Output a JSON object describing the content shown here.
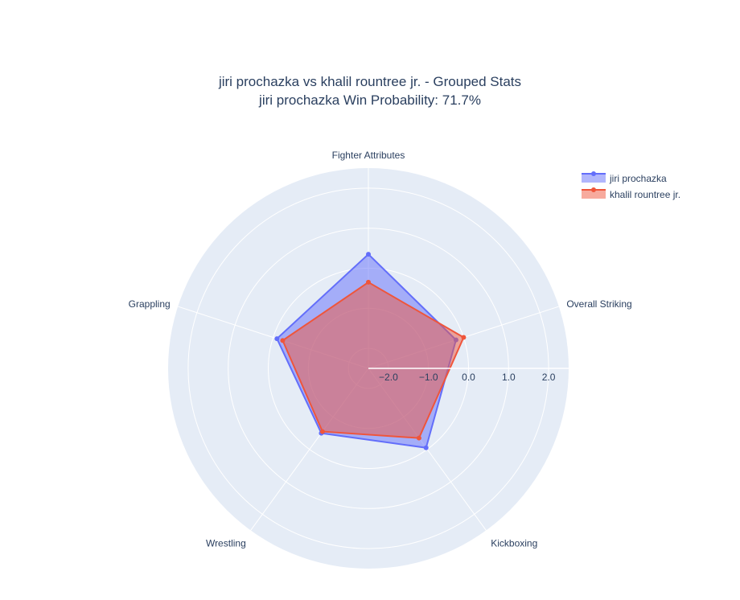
{
  "chart_data": {
    "type": "radar",
    "title": "jiri prochazka vs khalil rountree jr. - Grouped Stats",
    "subtitle": "jiri prochazka Win Probability: 71.7%",
    "categories": [
      "Fighter Attributes",
      "Overall Striking",
      "Kickboxing",
      "Wrestling",
      "Grappling"
    ],
    "radial_axis": {
      "range": [
        -2.5,
        2.5
      ],
      "ticks": [
        -2.0,
        -1.0,
        0.0,
        1.0,
        2.0
      ],
      "tick_labels": [
        "−2.0",
        "−1.0",
        "0.0",
        "1.0",
        "2.0"
      ],
      "angle_deg": 0
    },
    "series": [
      {
        "name": "jiri prochazka",
        "values": [
          0.35,
          -0.2,
          -0.05,
          -0.5,
          -0.1
        ],
        "color": "#636efa"
      },
      {
        "name": "khalil rountree jr.",
        "values": [
          -0.35,
          0.0,
          -0.35,
          -0.55,
          -0.25
        ],
        "color": "#ef553b"
      }
    ],
    "legend_position": "top-right",
    "grid": true
  }
}
